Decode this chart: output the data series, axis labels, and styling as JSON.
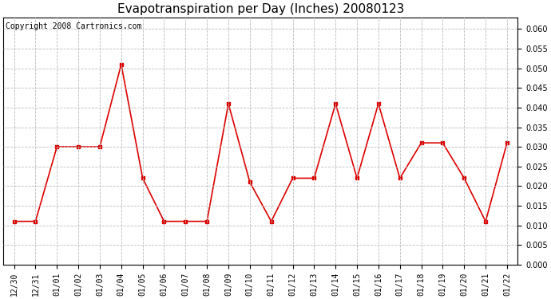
{
  "title": "Evapotranspiration per Day (Inches) 20080123",
  "copyright_text": "Copyright 2008 Cartronics.com",
  "x_labels": [
    "12/30",
    "12/31",
    "01/01",
    "01/02",
    "01/03",
    "01/04",
    "01/05",
    "01/06",
    "01/07",
    "01/08",
    "01/09",
    "01/10",
    "01/11",
    "01/12",
    "01/13",
    "01/14",
    "01/15",
    "01/16",
    "01/17",
    "01/18",
    "01/19",
    "01/20",
    "01/21",
    "01/22"
  ],
  "y_values": [
    0.011,
    0.011,
    0.03,
    0.03,
    0.03,
    0.051,
    0.022,
    0.011,
    0.011,
    0.011,
    0.041,
    0.021,
    0.011,
    0.022,
    0.022,
    0.041,
    0.022,
    0.041,
    0.022,
    0.031,
    0.031,
    0.022,
    0.011,
    0.031
  ],
  "line_color": "#dd0000",
  "marker": "s",
  "marker_size": 3,
  "ylim": [
    0.0,
    0.063
  ],
  "ytick_min": 0.0,
  "ytick_max": 0.06,
  "ytick_step": 0.005,
  "background_color": "#ffffff",
  "grid_color": "#bbbbbb",
  "title_fontsize": 11,
  "copyright_fontsize": 7,
  "tick_fontsize": 7
}
